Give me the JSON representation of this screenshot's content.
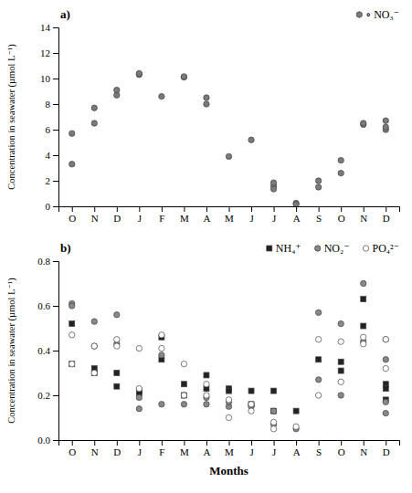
{
  "chart_data": [
    {
      "type": "scatter",
      "title": "a)",
      "ylabel": "Concentration in seawater (µmol L⁻¹)",
      "xlim": [
        -0.6,
        14.6
      ],
      "xticks": [
        {
          "value": 0,
          "label": "O"
        },
        {
          "value": 1,
          "label": "N"
        },
        {
          "value": 2,
          "label": "D"
        },
        {
          "value": 3,
          "label": "J"
        },
        {
          "value": 4,
          "label": "F"
        },
        {
          "value": 5,
          "label": "M"
        },
        {
          "value": 6,
          "label": "A"
        },
        {
          "value": 7,
          "label": "M"
        },
        {
          "value": 8,
          "label": "J"
        },
        {
          "value": 9,
          "label": "J"
        },
        {
          "value": 10,
          "label": "A"
        },
        {
          "value": 11,
          "label": "S"
        },
        {
          "value": 12,
          "label": "O"
        },
        {
          "value": 13,
          "label": "N"
        },
        {
          "value": 14,
          "label": "D"
        }
      ],
      "ylim": [
        0,
        14
      ],
      "yticks": [
        0,
        2,
        4,
        6,
        8,
        10,
        12,
        14
      ],
      "grid": false,
      "legend": "upper-right",
      "series": [
        {
          "name": "∘ NO₃⁻",
          "color": "#7a7a7a",
          "marker": "circle",
          "x": [
            0,
            0,
            1,
            1,
            2,
            2,
            3,
            3,
            4,
            5,
            5,
            6,
            6,
            7,
            8,
            9,
            9,
            9,
            10,
            10,
            11,
            11,
            12,
            12,
            13,
            13,
            14,
            14,
            14
          ],
          "values": [
            3.3,
            5.7,
            6.5,
            7.7,
            8.7,
            9.1,
            10.3,
            10.4,
            8.6,
            10.1,
            10.15,
            8.0,
            8.5,
            3.9,
            5.2,
            1.6,
            1.35,
            1.85,
            0.25,
            0.15,
            1.5,
            2.0,
            2.6,
            3.6,
            6.4,
            6.5,
            6.0,
            6.2,
            6.7
          ]
        }
      ]
    },
    {
      "type": "scatter",
      "title": "b)",
      "ylabel": "Concentration in seawater (µmol L⁻¹)",
      "xlabel": "Months",
      "xlim": [
        -0.6,
        14.6
      ],
      "xticks": [
        {
          "value": 0,
          "label": "O"
        },
        {
          "value": 1,
          "label": "N"
        },
        {
          "value": 2,
          "label": "D"
        },
        {
          "value": 3,
          "label": "J"
        },
        {
          "value": 4,
          "label": "F"
        },
        {
          "value": 5,
          "label": "M"
        },
        {
          "value": 6,
          "label": "A"
        },
        {
          "value": 7,
          "label": "M"
        },
        {
          "value": 8,
          "label": "J"
        },
        {
          "value": 9,
          "label": "J"
        },
        {
          "value": 10,
          "label": "A"
        },
        {
          "value": 11,
          "label": "S"
        },
        {
          "value": 12,
          "label": "O"
        },
        {
          "value": 13,
          "label": "N"
        },
        {
          "value": 14,
          "label": "D"
        }
      ],
      "ylim": [
        0,
        0.8
      ],
      "yticks": [
        {
          "value": 0,
          "label": "0.0"
        },
        0.2,
        0.4,
        0.6,
        0.8
      ],
      "grid": false,
      "legend": "upper-right",
      "series": [
        {
          "name": "NH₄⁺",
          "color": "#222222",
          "marker": "square",
          "x": [
            0,
            0,
            1,
            1,
            2,
            2,
            3,
            3,
            4,
            4,
            5,
            5,
            6,
            6,
            7,
            7,
            8,
            8,
            9,
            9,
            10,
            11,
            12,
            12,
            13,
            13,
            14,
            14,
            14
          ],
          "values": [
            0.52,
            0.34,
            0.32,
            0.3,
            0.24,
            0.3,
            0.22,
            0.21,
            0.36,
            0.46,
            0.25,
            0.2,
            0.23,
            0.29,
            0.23,
            0.22,
            0.22,
            0.16,
            0.13,
            0.22,
            0.13,
            0.36,
            0.35,
            0.31,
            0.63,
            0.51,
            0.25,
            0.18,
            0.23
          ]
        },
        {
          "name": "NO₂⁻",
          "color": "#888888",
          "marker": "circle",
          "x": [
            0,
            0,
            1,
            1,
            2,
            2,
            3,
            3,
            4,
            4,
            5,
            5,
            6,
            6,
            7,
            7,
            8,
            8,
            9,
            9,
            10,
            11,
            11,
            12,
            12,
            13,
            13,
            14,
            14,
            14
          ],
          "values": [
            0.61,
            0.6,
            0.53,
            0.42,
            0.43,
            0.56,
            0.19,
            0.14,
            0.16,
            0.38,
            0.16,
            0.2,
            0.16,
            0.19,
            0.15,
            0.17,
            0.15,
            0.16,
            0.13,
            0.07,
            0.05,
            0.27,
            0.57,
            0.52,
            0.2,
            0.7,
            0.44,
            0.36,
            0.17,
            0.12
          ]
        },
        {
          "name": "PO₄²⁻",
          "color": "white",
          "marker": "circle",
          "x": [
            0,
            0,
            1,
            1,
            2,
            2,
            3,
            3,
            4,
            4,
            5,
            5,
            6,
            6,
            7,
            7,
            8,
            8,
            9,
            9,
            10,
            11,
            11,
            12,
            12,
            13,
            13,
            14,
            14,
            14
          ],
          "values": [
            0.34,
            0.47,
            0.42,
            0.3,
            0.42,
            0.45,
            0.23,
            0.41,
            0.41,
            0.47,
            0.34,
            0.2,
            0.25,
            0.2,
            0.18,
            0.1,
            0.13,
            0.16,
            0.05,
            0.08,
            0.06,
            0.2,
            0.45,
            0.26,
            0.44,
            0.43,
            0.46,
            0.45,
            0.32,
            0.45
          ]
        }
      ]
    }
  ]
}
